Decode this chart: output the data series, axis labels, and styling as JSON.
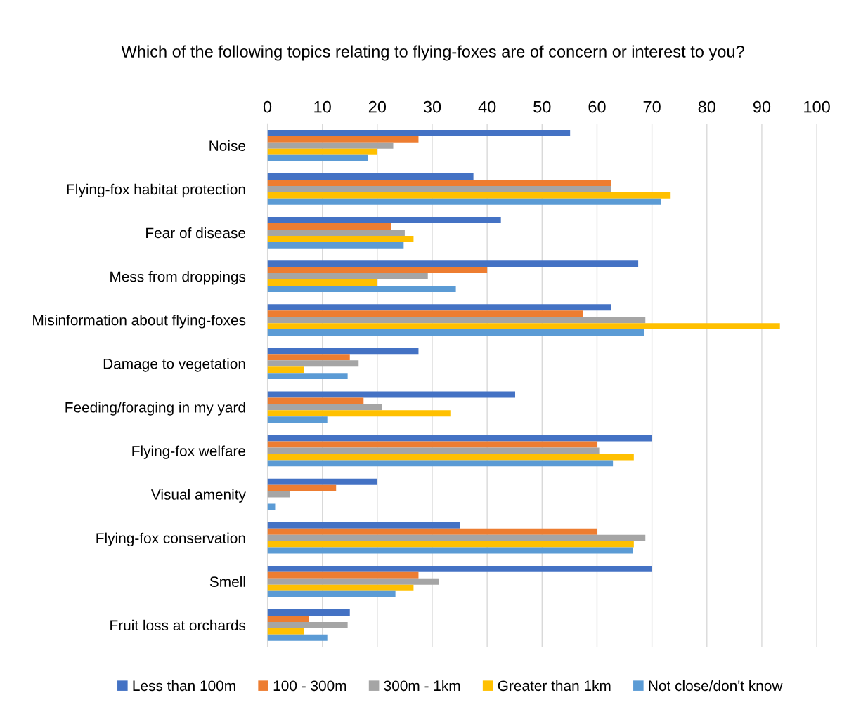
{
  "chart_data": {
    "type": "bar",
    "orientation": "horizontal",
    "title": "Which of the following topics relating to flying-foxes are of concern or interest to you?",
    "categories": [
      "Noise",
      "Flying-fox habitat protection",
      "Fear of disease",
      "Mess from droppings",
      "Misinformation about flying-foxes",
      "Damage to vegetation",
      "Feeding/foraging in my yard",
      "Flying-fox welfare",
      "Visual amenity",
      "Flying-fox conservation",
      "Smell",
      "Fruit loss at orchards"
    ],
    "series": [
      {
        "name": "Less than 100m",
        "color": "#4472c4",
        "values": [
          55.1,
          37.5,
          42.5,
          67.5,
          62.5,
          27.5,
          45.1,
          70.0,
          20.0,
          35.1,
          70.0,
          15.0
        ]
      },
      {
        "name": "100 - 300m",
        "color": "#ed7d31",
        "values": [
          27.5,
          62.5,
          22.5,
          40.0,
          57.5,
          15.0,
          17.5,
          60.0,
          12.5,
          60.0,
          27.5,
          7.5
        ]
      },
      {
        "name": "300m - 1km",
        "color": "#a5a5a5",
        "values": [
          22.9,
          62.5,
          25.0,
          29.2,
          68.8,
          16.6,
          20.9,
          60.4,
          4.1,
          68.8,
          31.2,
          14.6
        ]
      },
      {
        "name": "Greater than 1km",
        "color": "#ffc000",
        "values": [
          20.0,
          73.4,
          26.6,
          20.0,
          93.3,
          6.7,
          33.3,
          66.7,
          0,
          66.7,
          26.6,
          6.7
        ]
      },
      {
        "name": "Not close/don't know",
        "color": "#5b9bd5",
        "values": [
          18.3,
          71.6,
          24.8,
          34.3,
          68.6,
          14.6,
          10.9,
          62.9,
          1.4,
          66.5,
          23.3,
          10.9
        ]
      }
    ],
    "xlim": [
      0,
      100
    ],
    "xticks": [
      0,
      10,
      20,
      30,
      40,
      50,
      60,
      70,
      80,
      90,
      100
    ],
    "grid": "x",
    "legend": "bottom"
  }
}
